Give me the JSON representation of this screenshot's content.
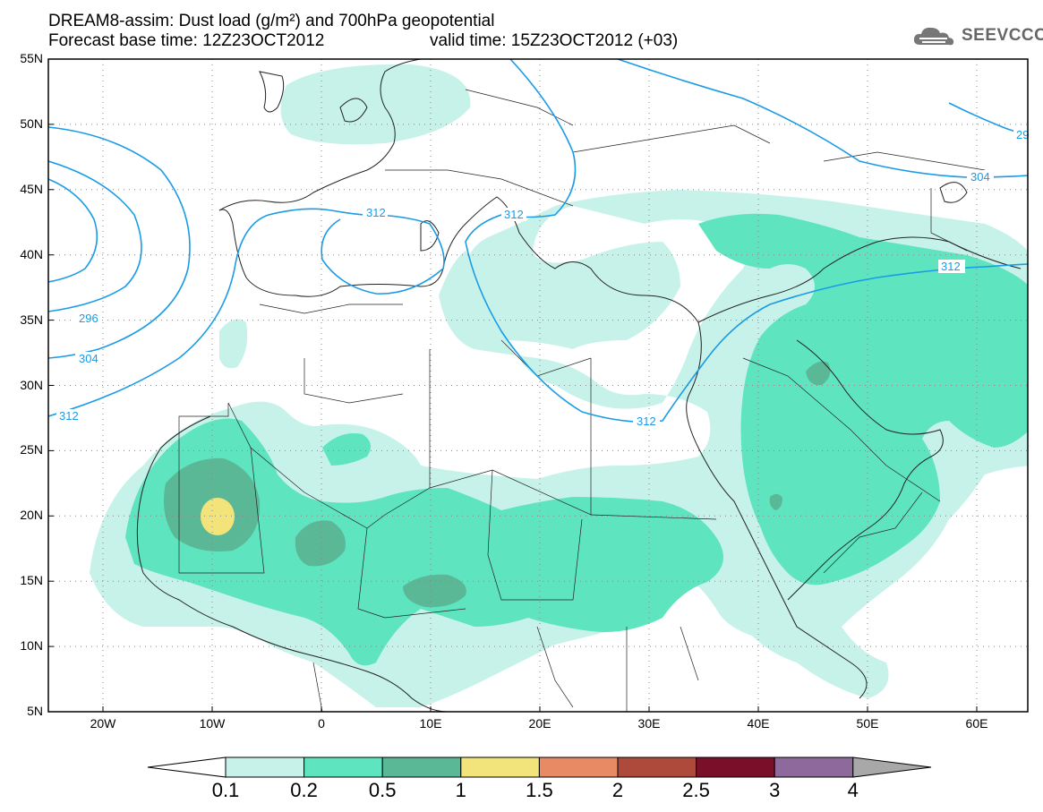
{
  "header": {
    "line1": "DREAM8-assim: Dust load (g/m²) and 700hPa geopotential",
    "line2_left": "Forecast base time: 12Z23OCT2012",
    "line2_right": "valid time: 15Z23OCT2012 (+03)",
    "logo_text": "SEEVCCC",
    "logo_icon": "cloud-icon"
  },
  "axes": {
    "lat_labels": [
      "55N",
      "50N",
      "45N",
      "40N",
      "35N",
      "30N",
      "25N",
      "20N",
      "15N",
      "10N",
      "5N"
    ],
    "lon_labels": [
      "20W",
      "10W",
      "0",
      "10E",
      "20E",
      "30E",
      "40E",
      "50E",
      "60E"
    ]
  },
  "contour_labels": [
    "312",
    "312",
    "296",
    "304",
    "312",
    "312",
    "312",
    "304",
    "29"
  ],
  "colorbar": {
    "levels": [
      "0.1",
      "0.2",
      "0.5",
      "1",
      "1.5",
      "2",
      "2.5",
      "3",
      "4"
    ],
    "colors": [
      "#ffffff",
      "#c6f2ea",
      "#5ee4bf",
      "#5bb896",
      "#f2e37a",
      "#e88a63",
      "#ad4a3c",
      "#7a0f2a",
      "#8e6a9c",
      "#a8a8a8"
    ]
  },
  "palette": {
    "c1": "#c6f2ea",
    "c2": "#5ee4bf",
    "c3": "#5bb896",
    "c4": "#f2e37a",
    "contour": "#1a9be6"
  }
}
